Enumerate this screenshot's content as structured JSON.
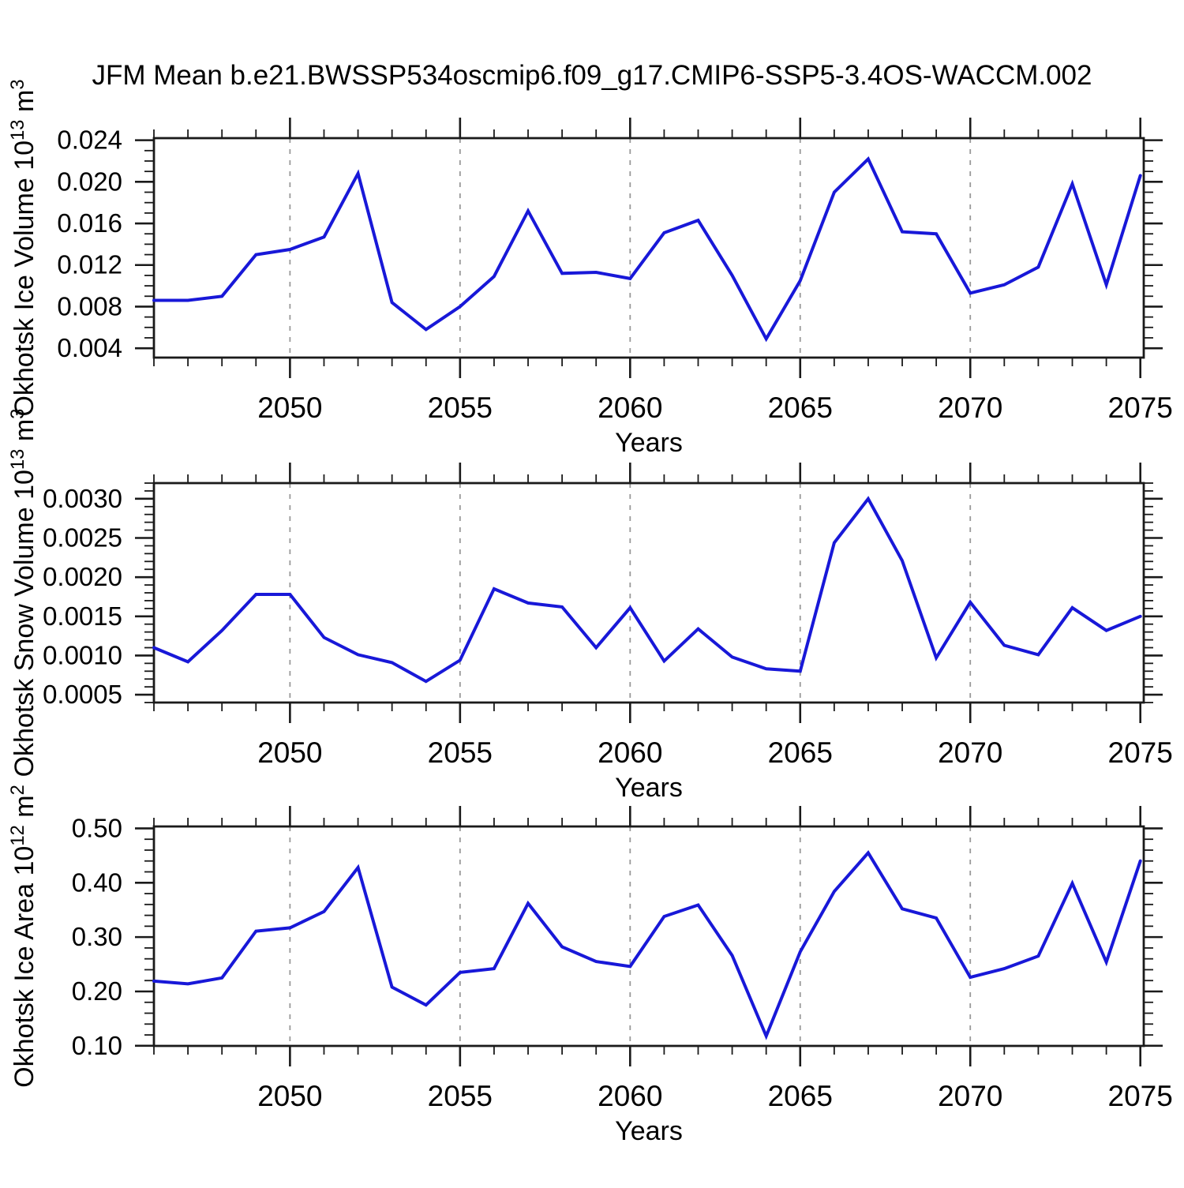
{
  "title": "JFM Mean b.e21.BWSSP534oscmip6.f09_g17.CMIP6-SSP5-3.4OS-WACCM.002",
  "colors": {
    "line": "#1818d8",
    "grid": "#999999",
    "axis": "#1a1a1a",
    "text": "#000000",
    "background": "#ffffff"
  },
  "chart_data": {
    "type": "line",
    "xlabel": "Years",
    "x_years": [
      2046,
      2047,
      2048,
      2049,
      2050,
      2051,
      2052,
      2053,
      2054,
      2055,
      2056,
      2057,
      2058,
      2059,
      2060,
      2061,
      2062,
      2063,
      2064,
      2065,
      2066,
      2067,
      2068,
      2069,
      2070,
      2071,
      2072,
      2073,
      2074,
      2075
    ],
    "xlim": [
      2046,
      2075.1
    ],
    "x_major_ticks": [
      2050,
      2055,
      2060,
      2065,
      2070,
      2075
    ],
    "x_major_tick_labels": [
      "2050",
      "2055",
      "2060",
      "2065",
      "2070",
      "2075"
    ],
    "x_gridlines": [
      2050,
      2055,
      2060,
      2065,
      2070
    ],
    "grid_style": "dashed",
    "legend": "none",
    "panels": [
      {
        "id": "ice-volume",
        "ylabel": "Okhotsk Ice Volume 10^13 m^3",
        "ylabel_parts": {
          "base": "Okhotsk Ice Volume 10",
          "exp": "13",
          "unit": " m",
          "unit_exp": "3"
        },
        "ylim": [
          0.0031,
          0.0242
        ],
        "ytick_values": [
          0.004,
          0.008,
          0.012,
          0.016,
          0.02,
          0.024
        ],
        "ytick_labels": [
          "0.004",
          "0.008",
          "0.012",
          "0.016",
          "0.020",
          "0.024"
        ],
        "yminor_step": 0.001,
        "values": [
          0.0086,
          0.0086,
          0.009,
          0.013,
          0.0135,
          0.0147,
          0.0208,
          0.0084,
          0.0058,
          0.008,
          0.0109,
          0.0172,
          0.0112,
          0.0113,
          0.0107,
          0.0151,
          0.0163,
          0.011,
          0.0049,
          0.0105,
          0.019,
          0.0222,
          0.0152,
          0.015,
          0.0093,
          0.0101,
          0.0118,
          0.0198,
          0.0101,
          0.0206
        ]
      },
      {
        "id": "snow-volume",
        "ylabel": "Okhotsk Snow Volume 10^13 m^3",
        "ylabel_parts": {
          "base": "Okhotsk Snow Volume 10",
          "exp": "13",
          "unit": " m",
          "unit_exp": "3"
        },
        "ylim": [
          0.0004,
          0.0032
        ],
        "ytick_values": [
          0.0005,
          0.001,
          0.0015,
          0.002,
          0.0025,
          0.003
        ],
        "ytick_labels": [
          "0.0005",
          "0.0010",
          "0.0015",
          "0.0020",
          "0.0025",
          "0.0030"
        ],
        "yminor_step": 0.0001,
        "values": [
          0.0011,
          0.00092,
          0.00132,
          0.00178,
          0.00178,
          0.00123,
          0.00101,
          0.00091,
          0.00067,
          0.00094,
          0.00185,
          0.00167,
          0.00162,
          0.0011,
          0.00161,
          0.00093,
          0.00134,
          0.00098,
          0.00083,
          0.0008,
          0.00244,
          0.003,
          0.00221,
          0.00097,
          0.00168,
          0.00113,
          0.00101,
          0.00161,
          0.00132,
          0.0015
        ]
      },
      {
        "id": "ice-area",
        "ylabel": "Okhotsk Ice Area 10^12 m^2",
        "ylabel_parts": {
          "base": "Okhotsk Ice Area 10",
          "exp": "12",
          "unit": " m",
          "unit_exp": "2"
        },
        "ylim": [
          0.0998,
          0.5035
        ],
        "ytick_values": [
          0.1,
          0.2,
          0.3,
          0.4,
          0.5
        ],
        "ytick_labels": [
          "0.10",
          "0.20",
          "0.30",
          "0.40",
          "0.50"
        ],
        "yminor_step": 0.02,
        "values": [
          0.219,
          0.214,
          0.225,
          0.311,
          0.317,
          0.347,
          0.428,
          0.208,
          0.175,
          0.235,
          0.242,
          0.362,
          0.282,
          0.255,
          0.246,
          0.338,
          0.359,
          0.266,
          0.118,
          0.273,
          0.384,
          0.455,
          0.352,
          0.335,
          0.226,
          0.242,
          0.265,
          0.399,
          0.254,
          0.44
        ]
      }
    ]
  }
}
